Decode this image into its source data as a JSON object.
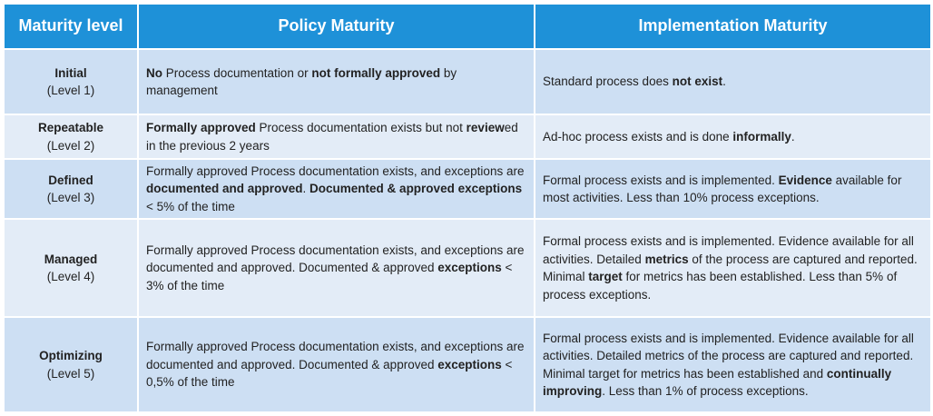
{
  "table": {
    "header": [
      "Maturity level",
      "Policy Maturity",
      "Implementation Maturity"
    ],
    "rows": [
      {
        "level": {
          "name": "Initial",
          "sub": "(Level 1)"
        },
        "policy": [
          [
            {
              "text": "No",
              "bold": true
            },
            {
              "text": " Process documentation or "
            },
            {
              "text": "not formally approved",
              "bold": true
            },
            {
              "text": " by management"
            }
          ]
        ],
        "implementation": [
          [
            {
              "text": "Standard process does "
            },
            {
              "text": "not exist",
              "bold": true
            },
            {
              "text": "."
            }
          ]
        ]
      },
      {
        "level": {
          "name": "Repeatable",
          "sub": "(Level 2)"
        },
        "policy": [
          [
            {
              "text": "Formally approved",
              "bold": true
            },
            {
              "text": " Process documentation exists but not "
            },
            {
              "text": "review",
              "bold": true
            },
            {
              "text": "ed in the previous 2 years"
            }
          ]
        ],
        "implementation": [
          [
            {
              "text": "Ad-hoc process exists and is done "
            },
            {
              "text": "informally",
              "bold": true
            },
            {
              "text": "."
            }
          ]
        ]
      },
      {
        "level": {
          "name": "Defined",
          "sub": "(Level 3)"
        },
        "policy": [
          [
            {
              "text": "Formally approved Process documentation exists, and exceptions are "
            },
            {
              "text": "documented and approved",
              "bold": true
            },
            {
              "text": ". "
            },
            {
              "text": "Documented & approved exceptions",
              "bold": true
            },
            {
              "text": " < 5% of the time"
            }
          ]
        ],
        "implementation": [
          [
            {
              "text": "Formal process exists and is implemented. "
            },
            {
              "text": "Evidence",
              "bold": true
            },
            {
              "text": " available for most activities. Less than 10% process exceptions."
            }
          ]
        ]
      },
      {
        "level": {
          "name": "Managed",
          "sub": "(Level 4)"
        },
        "policy": [
          [
            {
              "text": "Formally approved Process documentation exists, and exceptions are documented and approved. Documented & approved "
            },
            {
              "text": "exceptions",
              "bold": true
            },
            {
              "text": " < 3% of the time"
            }
          ]
        ],
        "implementation": [
          [
            {
              "text": "Formal process exists and is implemented. Evidence available for all activities. Detailed "
            },
            {
              "text": "metrics",
              "bold": true
            },
            {
              "text": " of the process are captured and reported."
            }
          ],
          [
            {
              "text": "Minimal "
            },
            {
              "text": "target",
              "bold": true
            },
            {
              "text": " for metrics has been established. Less than 5% of process exceptions."
            }
          ]
        ]
      },
      {
        "level": {
          "name": "Optimizing",
          "sub": "(Level 5)"
        },
        "policy": [
          [
            {
              "text": "Formally approved Process documentation exists, and exceptions are documented and approved. Documented & approved "
            },
            {
              "text": "exceptions",
              "bold": true
            },
            {
              "text": " < 0,5% of the time"
            }
          ]
        ],
        "implementation": [
          [
            {
              "text": "Formal process exists and is implemented. Evidence available for all activities. Detailed metrics of the process are captured and reported."
            }
          ],
          [
            {
              "text": "Minimal target for metrics has been established and "
            },
            {
              "text": "continually improving",
              "bold": true
            },
            {
              "text": ". Less than 1% of process exceptions."
            }
          ]
        ]
      }
    ]
  }
}
